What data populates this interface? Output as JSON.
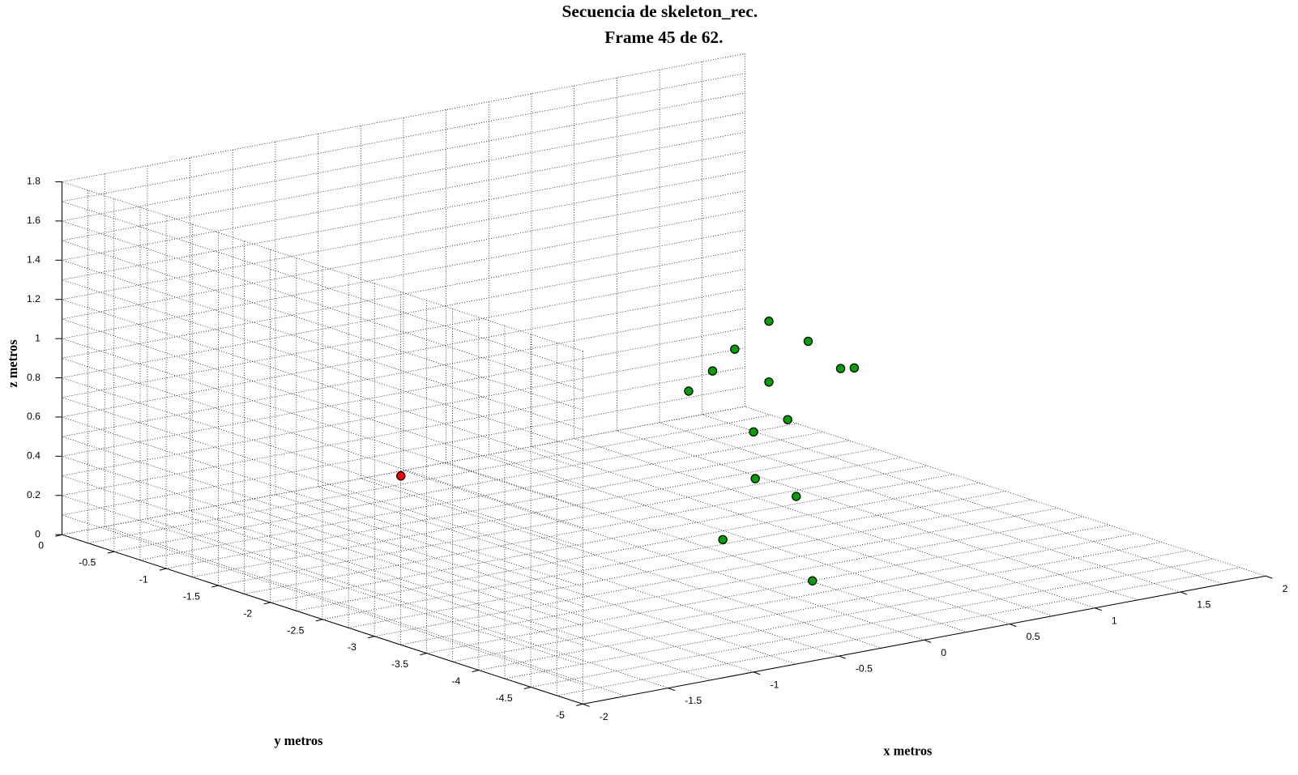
{
  "chart_data": {
    "type": "scatter3d",
    "title": "Secuencia de skeleton_rec.",
    "subtitle": "Frame 45 de 62.",
    "xlabel": "x metros",
    "ylabel": "y metros",
    "zlabel": "z metros",
    "xlim": [
      -2,
      2
    ],
    "xticks": [
      -2,
      -1.5,
      -1,
      -0.5,
      0,
      0.5,
      1,
      1.5,
      2
    ],
    "ylim": [
      -5,
      0
    ],
    "yticks": [
      -5,
      -4.5,
      -4,
      -3.5,
      -3,
      -2.5,
      -2,
      -1.5,
      -1,
      -0.5,
      0
    ],
    "zlim": [
      0,
      1.8
    ],
    "zticks": [
      0,
      0.2,
      0.4,
      0.6,
      0.8,
      1,
      1.2,
      1.4,
      1.6,
      1.8
    ],
    "grid": true,
    "minor_grid": true,
    "series": [
      {
        "color": "#ff0000",
        "x": [
          -0.07
        ],
        "y": [
          -0.09
        ],
        "z": [
          0
        ]
      },
      {
        "color": "#00a000",
        "x": [
          0.31,
          0.54,
          0.11,
          -0.02,
          0.73,
          0.81,
          0.31,
          -0.16,
          0.42,
          0.22,
          0.23,
          0.47,
          0.04,
          0.26
        ],
        "y": [
          -3,
          -3,
          -3,
          -3,
          -3,
          -3,
          -3,
          -3,
          -3,
          -3,
          -3,
          -3,
          -3,
          -3.5
        ],
        "z": [
          1.23,
          1.09,
          1.12,
          1.03,
          0.92,
          0.91,
          0.92,
          0.95,
          0.71,
          0.68,
          0.44,
          0.31,
          0.16,
          0
        ]
      }
    ]
  }
}
